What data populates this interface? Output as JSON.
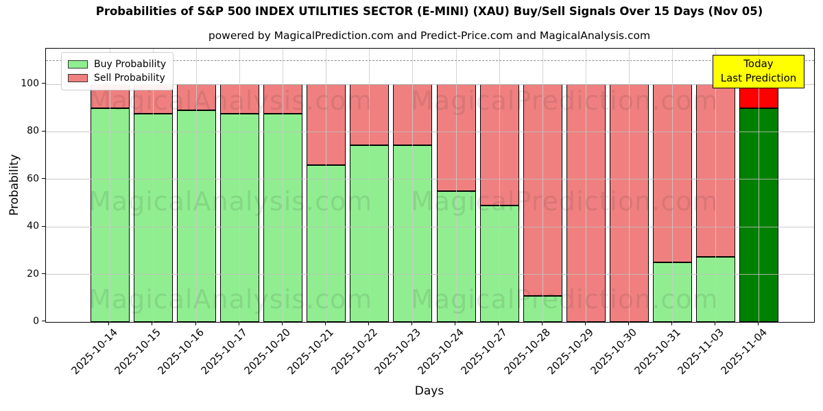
{
  "header": {
    "title": "Probabilities of S&P 500 INDEX UTILITIES SECTOR (E-MINI) (XAU) Buy/Sell Signals Over 15 Days (Nov 05)",
    "subtitle": "powered by MagicalPrediction.com and Predict-Price.com and MagicalAnalysis.com"
  },
  "legend": {
    "items": [
      {
        "label": "Buy Probability",
        "color": "#90EE90"
      },
      {
        "label": "Sell Probability",
        "color": "#F08080"
      }
    ]
  },
  "annotation": {
    "line1": "Today",
    "line2": "Last Prediction",
    "bg_color": "#FFFF00"
  },
  "watermarks": {
    "left_text": "MagicalAnalysis.com",
    "right_text": "MagicalPrediction.com"
  },
  "chart_data": {
    "type": "bar",
    "stacked": true,
    "title": "Probabilities of S&P 500 INDEX UTILITIES SECTOR (E-MINI) (XAU) Buy/Sell Signals Over 15 Days (Nov 05)",
    "xlabel": "Days",
    "ylabel": "Probability",
    "categories": [
      "2025-10-14",
      "2025-10-15",
      "2025-10-16",
      "2025-10-17",
      "2025-10-20",
      "2025-10-21",
      "2025-10-22",
      "2025-10-23",
      "2025-10-24",
      "2025-10-27",
      "2025-10-28",
      "2025-10-29",
      "2025-10-30",
      "2025-10-31",
      "2025-11-03",
      "2025-11-04"
    ],
    "series": [
      {
        "name": "Buy Probability",
        "color": "#90EE90",
        "values": [
          90,
          87.5,
          89,
          87.5,
          87.5,
          66,
          74.5,
          74.5,
          55,
          49,
          11,
          0,
          0,
          25,
          27.5,
          90
        ]
      },
      {
        "name": "Sell Probability",
        "color": "#F08080",
        "values": [
          10,
          12.5,
          11,
          12.5,
          12.5,
          34,
          25.5,
          25.5,
          45,
          51,
          89,
          100,
          100,
          75,
          72.5,
          10
        ]
      }
    ],
    "today_index": 15,
    "today_colors": {
      "buy": "#008000",
      "sell": "#FF0000"
    },
    "bar_edge_color": "#000000",
    "yticks": [
      0,
      20,
      40,
      60,
      80,
      100
    ],
    "ylim": [
      0,
      115
    ],
    "dashed_line_y": 110,
    "grid": true,
    "legend_position": "upper left"
  }
}
